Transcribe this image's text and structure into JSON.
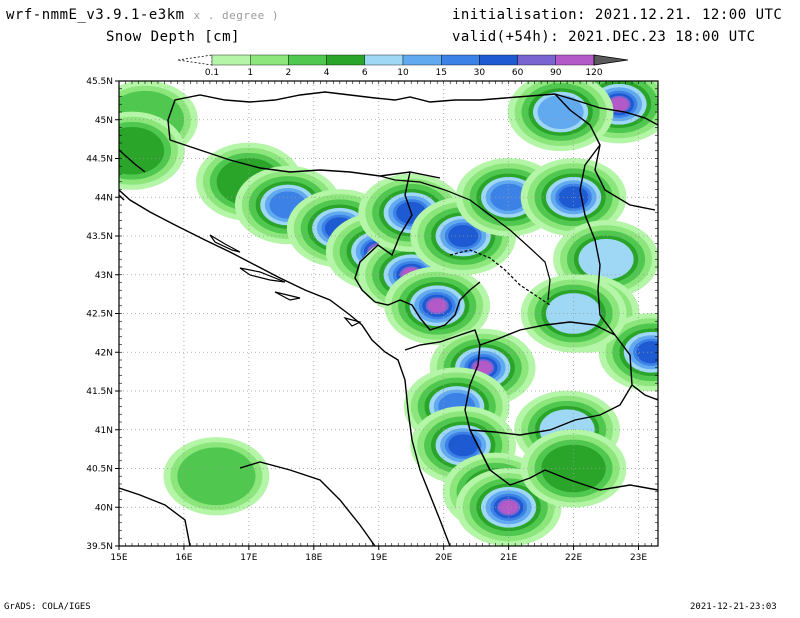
{
  "header": {
    "model": "wrf-nmmE_v3.9.1-e3km",
    "model_sub": "x . degree )",
    "variable": "Snow Depth [cm]",
    "initialisation": "initialisation: 2021.12.21.  12:00 UTC",
    "valid": "valid(+54h): 2021.DEC.23 18:00 UTC"
  },
  "colorbar": {
    "labels": [
      "0.1",
      "1",
      "2",
      "4",
      "6",
      "10",
      "15",
      "30",
      "60",
      "90",
      "120"
    ],
    "colors": [
      "#b4f5a8",
      "#8ce67c",
      "#50c850",
      "#2aa52a",
      "#9fd8f5",
      "#62aaf0",
      "#3c82e6",
      "#1e5ad2",
      "#7a64d2",
      "#b45ac8"
    ]
  },
  "map": {
    "lat_labels": [
      "45.5N",
      "45N",
      "44.5N",
      "44N",
      "43.5N",
      "43N",
      "42.5N",
      "42N",
      "41.5N",
      "41N",
      "40.5N",
      "40N",
      "39.5N"
    ],
    "lon_labels": [
      "15E",
      "16E",
      "17E",
      "18E",
      "19E",
      "20E",
      "21E",
      "22E",
      "23E"
    ],
    "lat_range": [
      39.5,
      45.5
    ],
    "lon_range": [
      15,
      23.3
    ],
    "grid": "dotted",
    "snow_areas": [
      {
        "lat": 45.0,
        "lon": 15.4,
        "level": 2
      },
      {
        "lat": 44.6,
        "lon": 15.2,
        "level": 3
      },
      {
        "lat": 44.2,
        "lon": 17.0,
        "level": 3
      },
      {
        "lat": 43.9,
        "lon": 17.6,
        "level": 6
      },
      {
        "lat": 43.6,
        "lon": 18.4,
        "level": 7
      },
      {
        "lat": 43.3,
        "lon": 19.0,
        "level": 8
      },
      {
        "lat": 43.0,
        "lon": 19.5,
        "level": 9
      },
      {
        "lat": 42.6,
        "lon": 19.9,
        "level": 9
      },
      {
        "lat": 43.8,
        "lon": 19.5,
        "level": 7
      },
      {
        "lat": 43.5,
        "lon": 20.3,
        "level": 7
      },
      {
        "lat": 44.0,
        "lon": 21.0,
        "level": 6
      },
      {
        "lat": 44.0,
        "lon": 22.0,
        "level": 7
      },
      {
        "lat": 45.2,
        "lon": 22.7,
        "level": 9
      },
      {
        "lat": 45.1,
        "lon": 21.8,
        "level": 5
      },
      {
        "lat": 43.2,
        "lon": 22.5,
        "level": 4
      },
      {
        "lat": 42.5,
        "lon": 22.2,
        "level": 6
      },
      {
        "lat": 42.0,
        "lon": 23.2,
        "level": 7
      },
      {
        "lat": 41.8,
        "lon": 20.6,
        "level": 9
      },
      {
        "lat": 41.3,
        "lon": 20.2,
        "level": 6
      },
      {
        "lat": 40.8,
        "lon": 20.3,
        "level": 7
      },
      {
        "lat": 40.2,
        "lon": 20.8,
        "level": 8
      },
      {
        "lat": 40.0,
        "lon": 21.0,
        "level": 9
      },
      {
        "lat": 41.0,
        "lon": 21.9,
        "level": 4
      },
      {
        "lat": 40.5,
        "lon": 22.0,
        "level": 3
      },
      {
        "lat": 40.4,
        "lon": 16.5,
        "level": 2
      },
      {
        "lat": 42.5,
        "lon": 22.0,
        "level": 4
      }
    ]
  },
  "footer": {
    "credit": "GrADS: COLA/IGES",
    "timestamp": "2021-12-21-23:03"
  }
}
